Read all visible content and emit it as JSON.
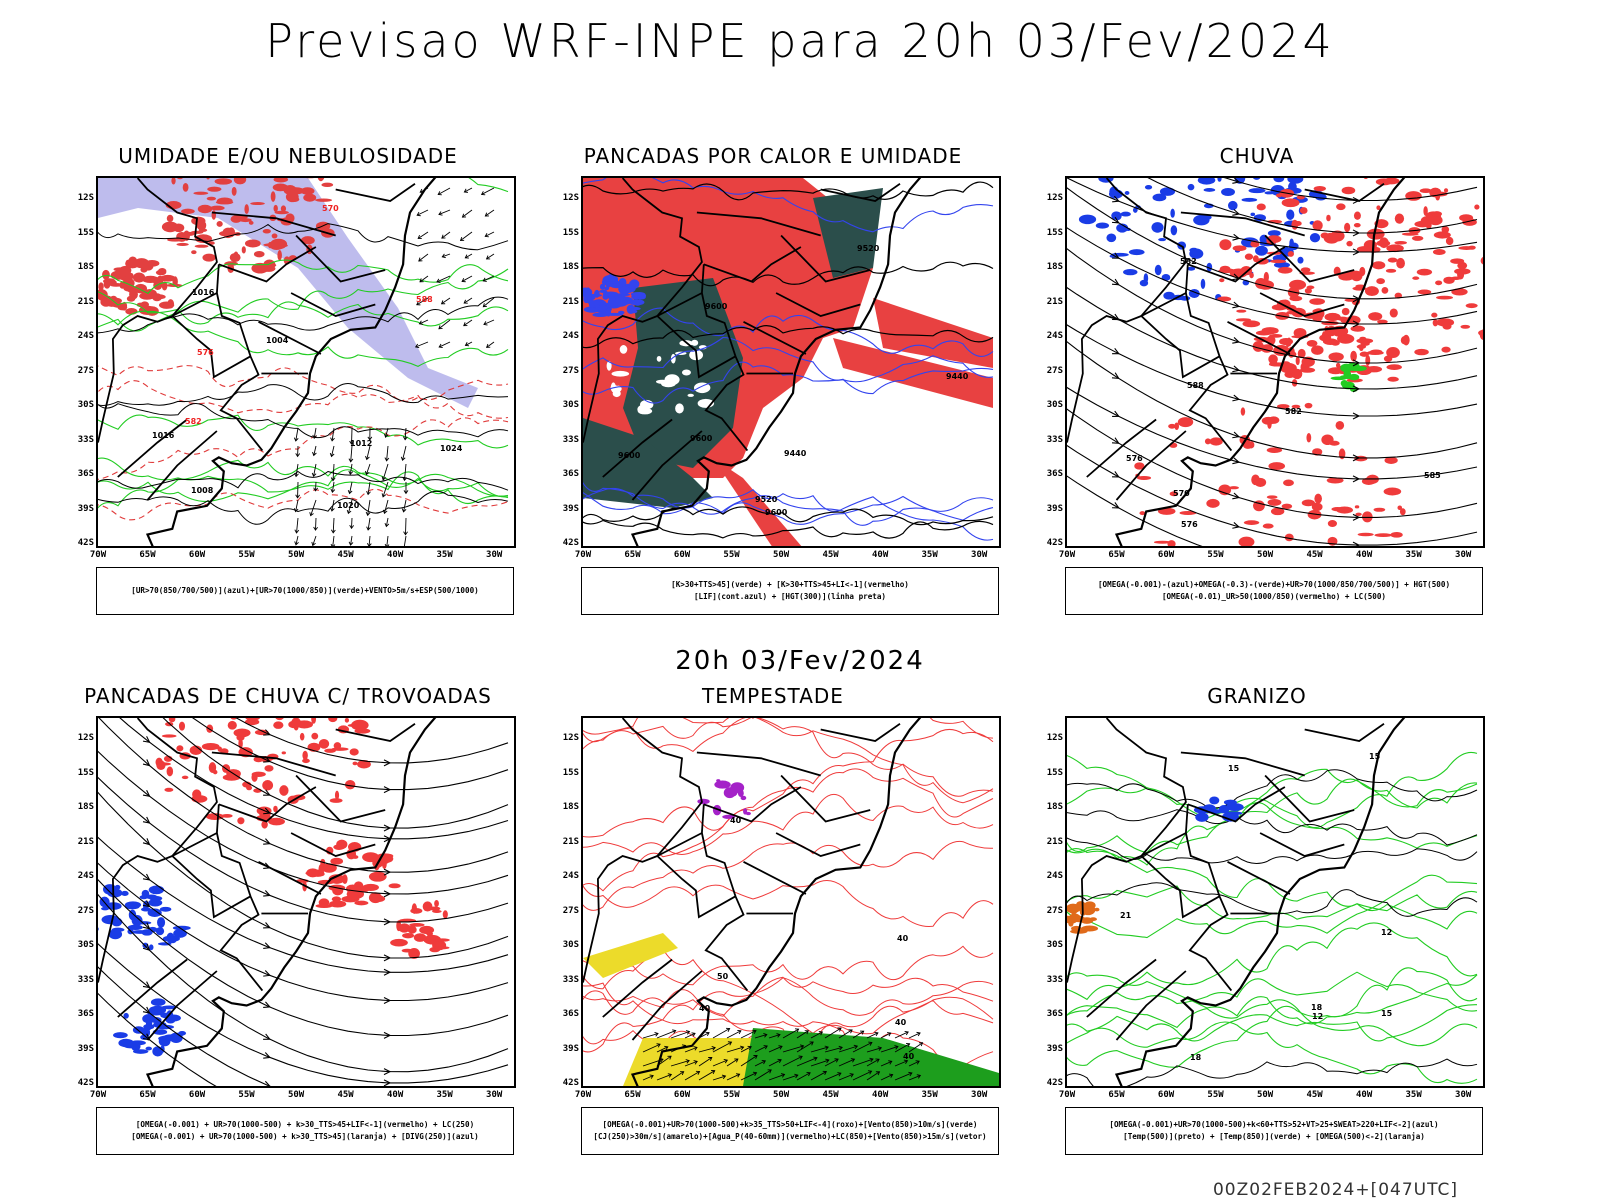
{
  "title": "Previsao WRF-INPE  para 20h 03/Fev/2024",
  "subtitle": "20h 03/Fev/2024",
  "footer": "00Z02FEB2024+[047UTC]",
  "lat_labels": [
    "12S",
    "15S",
    "18S",
    "21S",
    "24S",
    "27S",
    "30S",
    "33S",
    "36S",
    "39S",
    "42S"
  ],
  "lon_labels": [
    "70W",
    "65W",
    "60W",
    "55W",
    "50W",
    "45W",
    "40W",
    "35W",
    "30W"
  ],
  "panels": [
    {
      "title": "UMIDADE E/OU NEBULOSIDADE",
      "legend": [
        "[UR>70(850/700/500)](azul)+[UR>70(1000/850)](verde)+VENTO>5m/s+ESP(500/1000)"
      ],
      "contours": [
        "1008",
        "1012",
        "1016",
        "1016",
        "1020",
        "1024",
        "1004",
        "570",
        "576",
        "582",
        "588"
      ]
    },
    {
      "title": "PANCADAS POR CALOR E UMIDADE",
      "legend": [
        "[K>30+TTS>45](verde) + [K>30+TTS>45+LI<-1](vermelho)",
        "[LIF](cont.azul) + [HGT(300)](linha preta)"
      ],
      "contours": [
        "9600",
        "9600",
        "9600",
        "9520",
        "9520",
        "9440",
        "9440",
        "9600"
      ]
    },
    {
      "title": "CHUVA",
      "legend": [
        "[OMEGA(-0.001)-(azul)+OMEGA(-0.3)-(verde)+UR>70(1000/850/700/500)] + HGT(500)",
        "[OMEGA(-0.01)_UR>50(1000/850)(vermelho) + LC(500)"
      ],
      "contours": [
        "588",
        "582",
        "585",
        "576",
        "570",
        "576",
        "582"
      ]
    },
    {
      "title": "PANCADAS DE CHUVA C/ TROVOADAS",
      "legend": [
        "[OMEGA(-0.001) + UR>70(1000-500) + k>30_TTS>45+LIF<-1](vermelho) + LC(250)",
        "[OMEGA(-0.001) + UR>70(1000-500) + k>30_TTS>45](laranja) + [DIVG(250)](azul)"
      ],
      "contours": []
    },
    {
      "title": "TEMPESTADE",
      "legend": [
        "[OMEGA(-0.001)+UR>70(1000-500)+k>35_TTS>50+LIF<-4](roxo)+[Vento(850)>10m/s](verde)",
        "[CJ(250)>30m/s](amarelo)+[Agua_P(40-60mm)](vermelho)+LC(850)+[Vento(850)>15m/s](vetor)"
      ],
      "contours": [
        "40",
        "40",
        "40",
        "50",
        "40",
        "40"
      ]
    },
    {
      "title": "GRANIZO",
      "legend": [
        "[OMEGA(-0.001)+UR>70(1000-500)+k<60+TTS>52+VT>25+SWEAT>220+LIF<-2](azul)",
        "[Temp(500)](preto) + [Temp(850)](verde) + [OMEGA(500)<-2](laranja)"
      ],
      "contours": [
        "15",
        "18",
        "15",
        "12",
        "12",
        "15",
        "18",
        "21"
      ]
    }
  ]
}
